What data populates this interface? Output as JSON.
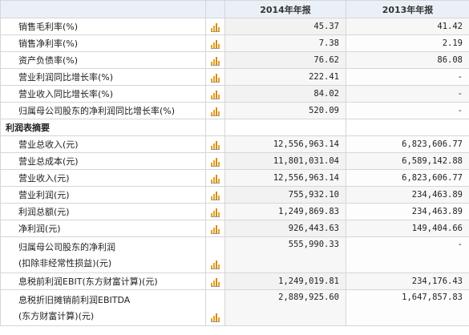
{
  "header": {
    "col_label": "",
    "col_y1": "2014年年报",
    "col_y2": "2013年年报"
  },
  "rows": [
    {
      "label": "销售毛利率(%)",
      "y1": "45.37",
      "y2": "41.42"
    },
    {
      "label": "销售净利率(%)",
      "y1": "7.38",
      "y2": "2.19"
    },
    {
      "label": "资产负债率(%)",
      "y1": "76.62",
      "y2": "86.08"
    },
    {
      "label": "营业利润同比增长率(%)",
      "y1": "222.41",
      "y2": "-"
    },
    {
      "label": "营业收入同比增长率(%)",
      "y1": "84.02",
      "y2": "-"
    },
    {
      "label": "归属母公司股东的净利润同比增长率(%)",
      "y1": "520.09",
      "y2": "-"
    }
  ],
  "section_title": "利润表摘要",
  "profit_rows": [
    {
      "label": "营业总收入(元)",
      "y1": "12,556,963.14",
      "y2": "6,823,606.77"
    },
    {
      "label": "营业总成本(元)",
      "y1": "11,801,031.04",
      "y2": "6,589,142.88"
    },
    {
      "label": "营业收入(元)",
      "y1": "12,556,963.14",
      "y2": "6,823,606.77"
    },
    {
      "label": "营业利润(元)",
      "y1": "755,932.10",
      "y2": "234,463.89"
    },
    {
      "label": "利润总额(元)",
      "y1": "1,249,869.83",
      "y2": "234,463.89"
    },
    {
      "label": "净利润(元)",
      "y1": "926,443.63",
      "y2": "149,404.66"
    },
    {
      "label": "归属母公司股东的净利润",
      "label2": "(扣除非经常性损益)(元)",
      "y1": "555,990.33",
      "y2": "-"
    },
    {
      "label": "息税前利润EBIT(东方财富计算)(元)",
      "y1": "1,249,019.81",
      "y2": "234,176.43"
    },
    {
      "label": "息税折旧摊销前利润EBITDA",
      "label2": "(东方财富计算)(元)",
      "y1": "2,889,925.60",
      "y2": "1,647,857.83"
    }
  ],
  "icon": "bar-chart-icon",
  "colors": {
    "header_bg": "#eaf0f7",
    "icon": "#e8a21c",
    "border": "#d6d6d6"
  }
}
